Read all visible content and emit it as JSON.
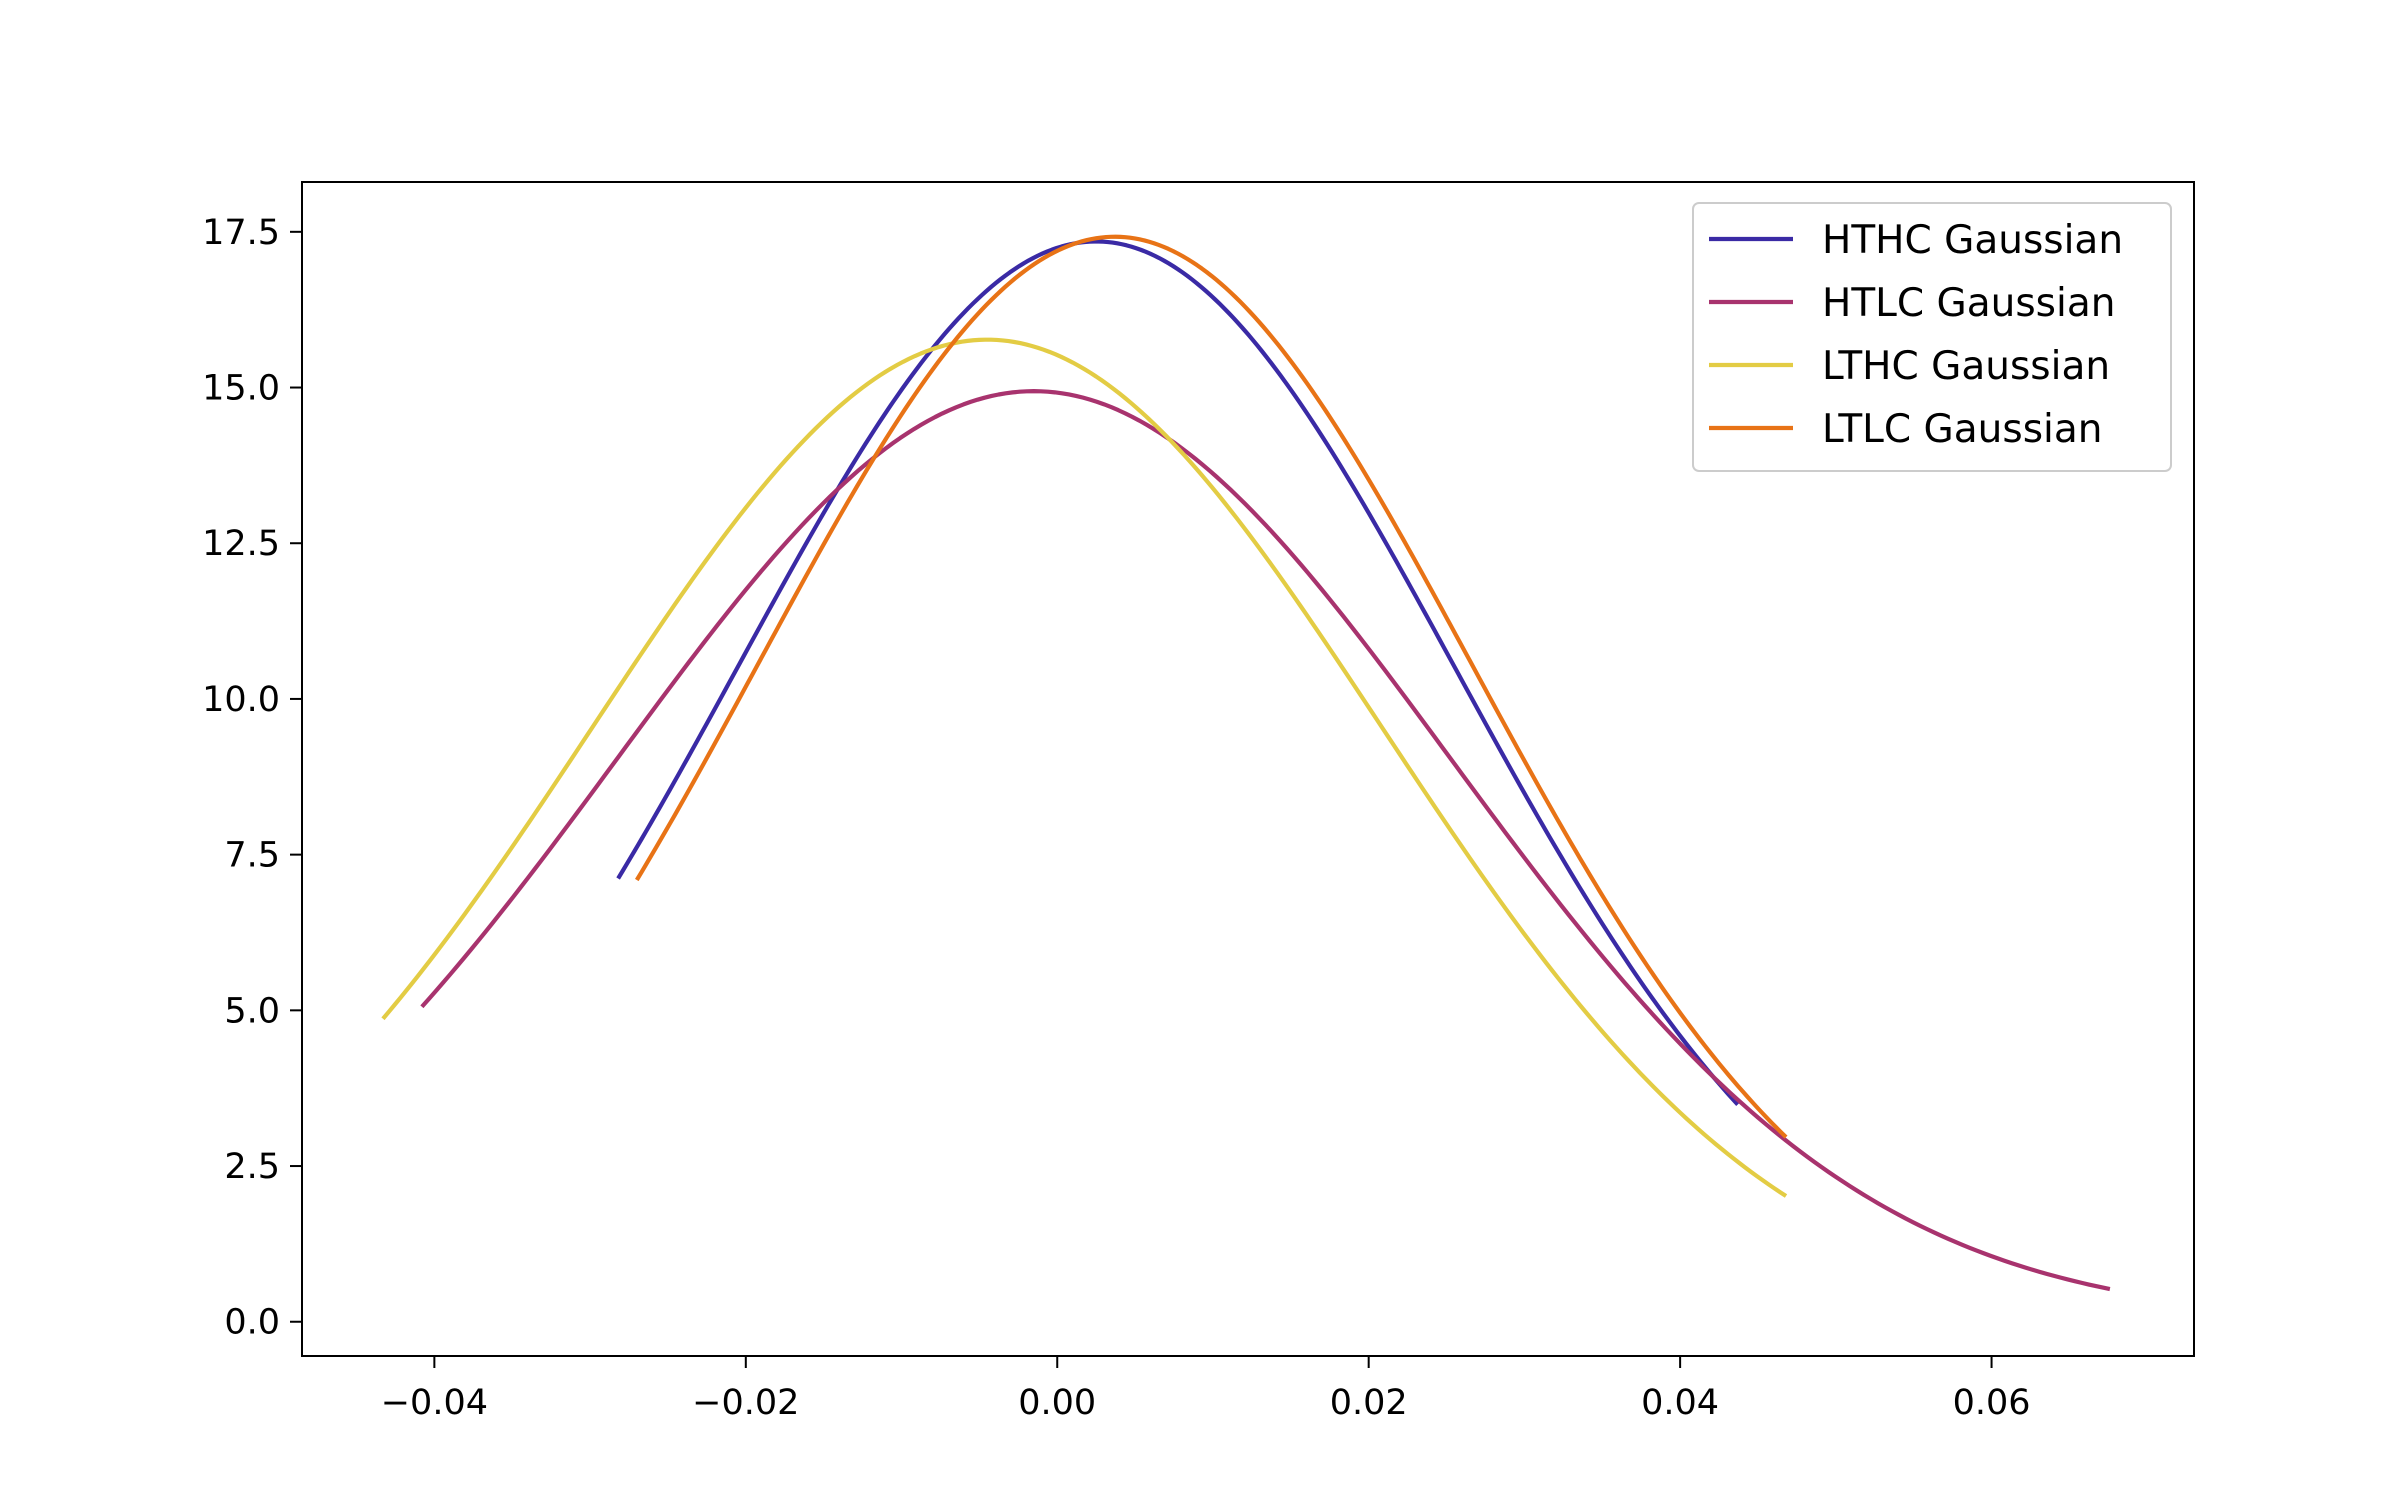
{
  "chart_data": {
    "type": "line",
    "title": "",
    "xlabel": "",
    "ylabel": "",
    "xlim": [
      -0.0485,
      0.073
    ],
    "ylim": [
      -0.55,
      18.3
    ],
    "xticks": [
      -0.04,
      -0.02,
      0.0,
      0.02,
      0.04,
      0.06
    ],
    "xtick_labels": [
      "−0.04",
      "−0.02",
      "0.00",
      "0.02",
      "0.04",
      "0.06"
    ],
    "yticks": [
      0.0,
      2.5,
      5.0,
      7.5,
      10.0,
      12.5,
      15.0,
      17.5
    ],
    "ytick_labels": [
      "0.0",
      "2.5",
      "5.0",
      "7.5",
      "10.0",
      "12.5",
      "15.0",
      "17.5"
    ],
    "grid": false,
    "legend_position": "top-right",
    "series": [
      {
        "name": "HTHC Gaussian",
        "color": "#3a2aa5",
        "mu": 0.0025,
        "sigma": 0.023,
        "x_start": -0.0282,
        "x_end": 0.0437
      },
      {
        "name": "HTLC Gaussian",
        "color": "#a8336e",
        "mu": -0.0015,
        "sigma": 0.0267,
        "x_start": -0.0408,
        "x_end": 0.0676
      },
      {
        "name": "LTHC Gaussian",
        "color": "#e3cc44",
        "mu": -0.0045,
        "sigma": 0.0253,
        "x_start": -0.0433,
        "x_end": 0.0468
      },
      {
        "name": "LTLC Gaussian",
        "color": "#e87316",
        "mu": 0.0037,
        "sigma": 0.0229,
        "x_start": -0.027,
        "x_end": 0.0468
      }
    ]
  }
}
